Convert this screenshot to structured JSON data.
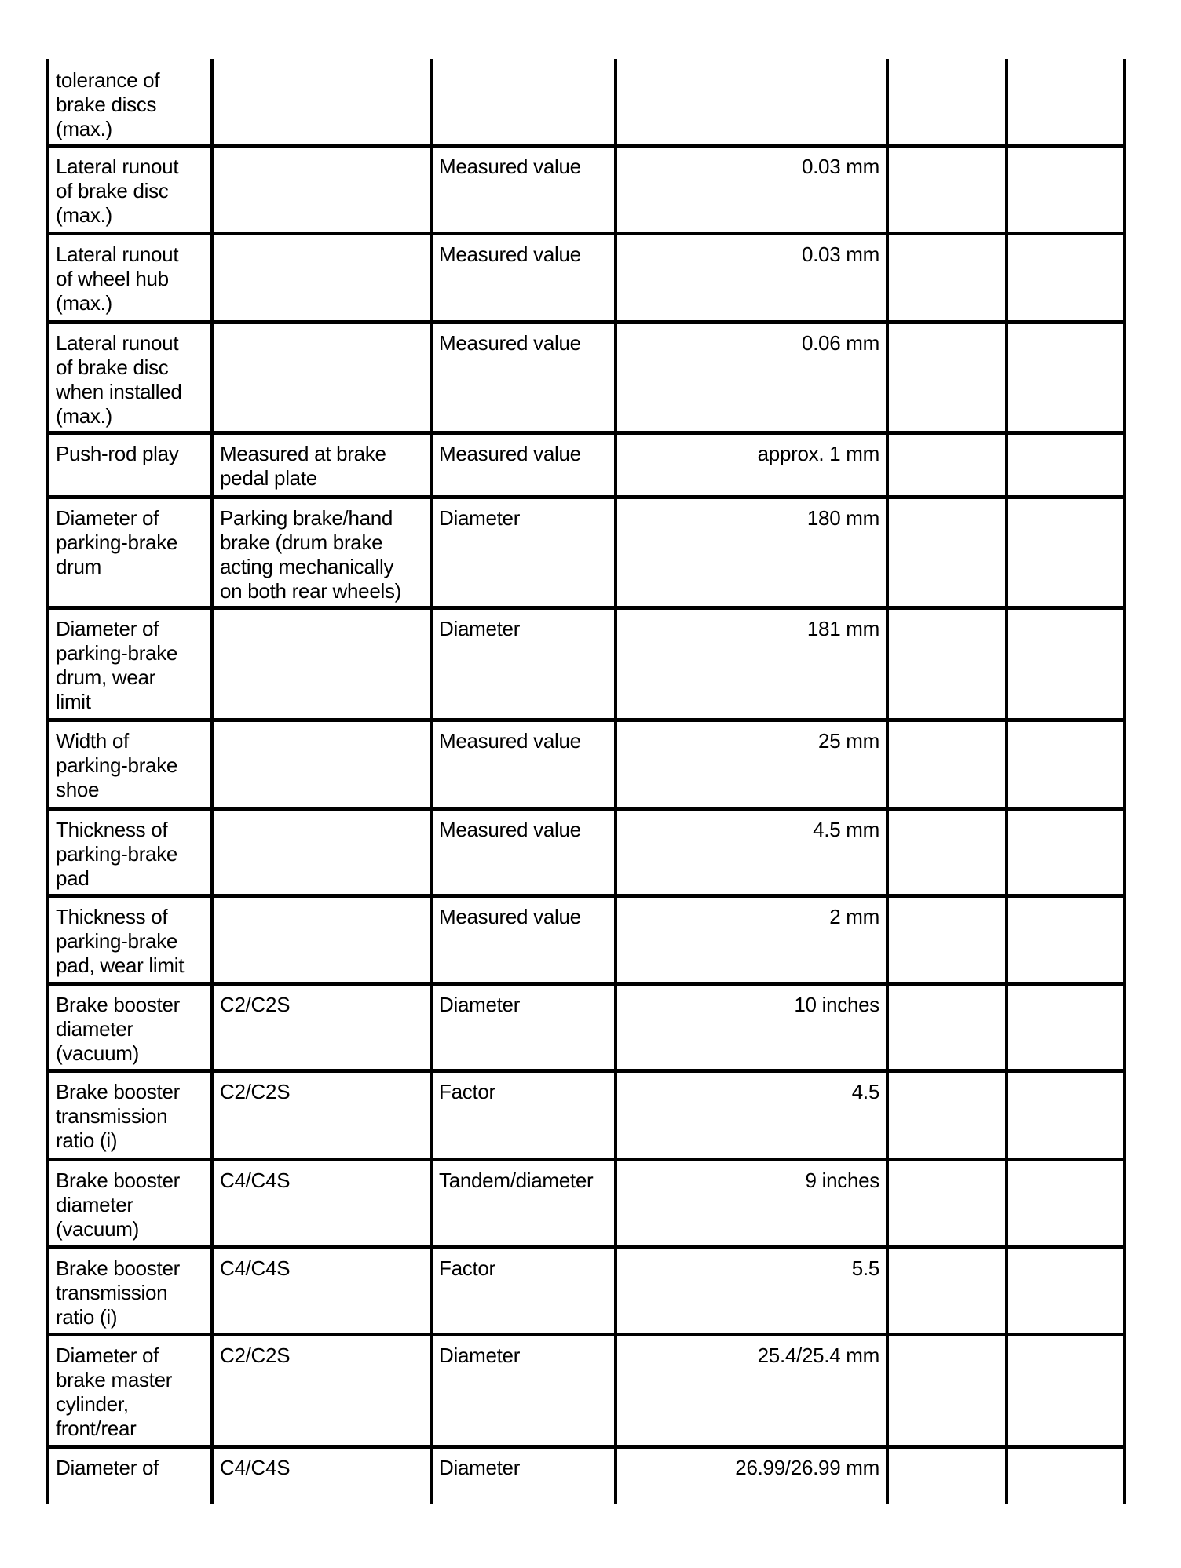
{
  "table": {
    "rows": [
      {
        "parameter": "tolerance of\nbrake discs\n(max.)",
        "condition": "",
        "type": "",
        "value": "",
        "col5": "",
        "col6": ""
      },
      {
        "parameter": "Lateral runout\nof brake disc\n(max.)",
        "condition": "",
        "type": "Measured value",
        "value": "0.03 mm",
        "col5": "",
        "col6": ""
      },
      {
        "parameter": "Lateral runout\nof wheel hub\n(max.)",
        "condition": "",
        "type": "Measured value",
        "value": "0.03 mm",
        "col5": "",
        "col6": ""
      },
      {
        "parameter": "Lateral runout\nof brake disc\nwhen installed\n(max.)",
        "condition": "",
        "type": "Measured value",
        "value": "0.06 mm",
        "col5": "",
        "col6": ""
      },
      {
        "parameter": "Push-rod play",
        "condition": "Measured at brake\npedal plate",
        "type": "Measured value",
        "value": "approx. 1 mm",
        "col5": "",
        "col6": ""
      },
      {
        "parameter": "Diameter of\nparking-brake\ndrum",
        "condition": "Parking brake/hand\nbrake (drum brake\nacting mechanically\non both rear wheels)",
        "type": "Diameter",
        "value": "180 mm",
        "col5": "",
        "col6": ""
      },
      {
        "parameter": "Diameter of\nparking-brake\ndrum, wear\nlimit",
        "condition": "",
        "type": "Diameter",
        "value": "181 mm",
        "col5": "",
        "col6": ""
      },
      {
        "parameter": "Width of\nparking-brake\nshoe",
        "condition": "",
        "type": "Measured value",
        "value": "25 mm",
        "col5": "",
        "col6": ""
      },
      {
        "parameter": "Thickness of\nparking-brake\npad",
        "condition": "",
        "type": "Measured value",
        "value": "4.5 mm",
        "col5": "",
        "col6": ""
      },
      {
        "parameter": "Thickness of\nparking-brake\npad, wear limit",
        "condition": "",
        "type": "Measured value",
        "value": "2 mm",
        "col5": "",
        "col6": ""
      },
      {
        "parameter": "Brake booster\ndiameter\n(vacuum)",
        "condition": "C2/C2S",
        "type": "Diameter",
        "value": "10 inches",
        "col5": "",
        "col6": ""
      },
      {
        "parameter": "Brake booster\ntransmission\nratio (i)",
        "condition": "C2/C2S",
        "type": "Factor",
        "value": "4.5",
        "col5": "",
        "col6": ""
      },
      {
        "parameter": "Brake booster\ndiameter\n(vacuum)",
        "condition": "C4/C4S",
        "type": "Tandem/diameter",
        "value": "9 inches",
        "col5": "",
        "col6": ""
      },
      {
        "parameter": "Brake booster\ntransmission\nratio (i)",
        "condition": "C4/C4S",
        "type": "Factor",
        "value": "5.5",
        "col5": "",
        "col6": ""
      },
      {
        "parameter": "Diameter of\nbrake master\ncylinder,\nfront/rear",
        "condition": "C2/C2S",
        "type": "Diameter",
        "value": "25.4/25.4 mm",
        "col5": "",
        "col6": ""
      },
      {
        "parameter": "Diameter of",
        "condition": "C4/C4S",
        "type": "Diameter",
        "value": "26.99/26.99 mm",
        "col5": "",
        "col6": ""
      }
    ]
  }
}
